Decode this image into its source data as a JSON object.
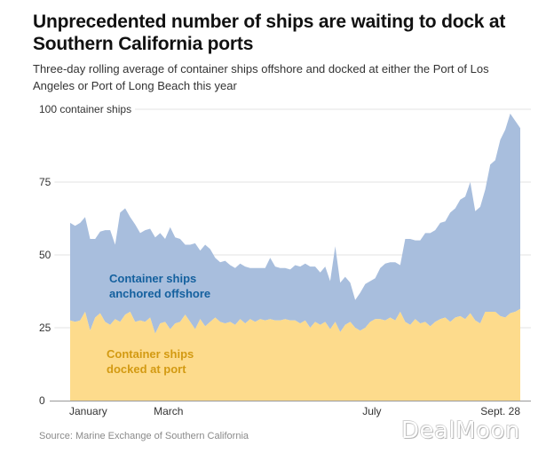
{
  "header": {
    "title": "Unprecedented number of ships are waiting to dock at Southern California ports",
    "subtitle": "Three-day rolling average of container ships offshore and docked at either the Port of Los Angeles or Port of Long Beach this year"
  },
  "footer": {
    "source": "Source: Marine Exchange of Southern California",
    "watermark": "DealMoon"
  },
  "colors": {
    "offshore": "#a8bedd",
    "docked": "#fddb8c",
    "offshore_label": "#14609e",
    "docked_label": "#d39a12",
    "grid": "#e3e3e3",
    "axis": "#999999"
  },
  "chart_data": {
    "type": "area",
    "stacked": true,
    "title": "Unprecedented number of ships are waiting to dock at Southern California ports",
    "subtitle": "Three-day rolling average of container ships offshore and docked at either the Port of Los Angeles or Port of Long Beach this year",
    "xlabel": "",
    "ylabel": "container ships",
    "ylim": [
      0,
      100
    ],
    "y_ticks": [
      {
        "value": 0,
        "label": "0"
      },
      {
        "value": 25,
        "label": "25"
      },
      {
        "value": 50,
        "label": "50"
      },
      {
        "value": 75,
        "label": "75"
      },
      {
        "value": 100,
        "label": "100 container ships"
      }
    ],
    "x_range_days": [
      0,
      270
    ],
    "x_ticks": [
      {
        "day": 0,
        "label": "January",
        "align": "start"
      },
      {
        "day": 59,
        "label": "March",
        "align": "middle"
      },
      {
        "day": 181,
        "label": "July",
        "align": "middle"
      },
      {
        "day": 270,
        "label": "Sept. 28",
        "align": "end"
      }
    ],
    "grid": true,
    "legend": "inline-labels",
    "annotations": [
      {
        "series": "offshore",
        "lines": [
          "Container ships",
          "anchored offshore"
        ]
      },
      {
        "series": "docked",
        "lines": [
          "Container ships",
          "docked at port"
        ]
      }
    ],
    "x_days": [
      0,
      3,
      6,
      9,
      12,
      15,
      18,
      21,
      24,
      27,
      30,
      33,
      36,
      39,
      42,
      45,
      48,
      51,
      54,
      57,
      60,
      63,
      66,
      69,
      72,
      75,
      78,
      81,
      84,
      87,
      90,
      93,
      96,
      99,
      102,
      105,
      108,
      111,
      114,
      117,
      120,
      123,
      126,
      129,
      132,
      135,
      138,
      141,
      144,
      147,
      150,
      153,
      156,
      159,
      162,
      165,
      168,
      171,
      174,
      177,
      180,
      183,
      186,
      189,
      192,
      195,
      198,
      201,
      204,
      207,
      210,
      213,
      216,
      219,
      222,
      225,
      228,
      231,
      234,
      237,
      240,
      243,
      246,
      249,
      252,
      255,
      258,
      261,
      264,
      267,
      270
    ],
    "series": [
      {
        "name": "Container ships docked at port",
        "key": "docked",
        "values": [
          27.5,
          27.0,
          27.5,
          30.5,
          24.0,
          28.5,
          30.0,
          27.0,
          26.0,
          28.0,
          27.0,
          29.5,
          30.5,
          27.0,
          27.5,
          27.0,
          28.5,
          23.0,
          26.5,
          27.0,
          24.5,
          26.5,
          27.0,
          29.5,
          27.0,
          24.5,
          28.0,
          25.5,
          27.0,
          28.5,
          27.0,
          26.5,
          27.0,
          26.0,
          28.0,
          26.5,
          28.0,
          27.0,
          28.0,
          27.5,
          28.0,
          27.5,
          27.5,
          28.0,
          27.5,
          27.5,
          26.5,
          27.5,
          25.0,
          27.0,
          26.0,
          27.0,
          24.5,
          27.0,
          23.5,
          26.0,
          27.0,
          25.0,
          24.0,
          25.0,
          27.0,
          28.0,
          28.0,
          27.5,
          28.5,
          27.5,
          30.5,
          27.0,
          26.0,
          28.0,
          26.5,
          27.0,
          25.5,
          27.0,
          28.0,
          28.5,
          27.0,
          28.5,
          29.0,
          28.0,
          30.0,
          27.5,
          26.5,
          30.5,
          30.5,
          30.5,
          29.0,
          28.5,
          30.0,
          30.5,
          31.5
        ]
      },
      {
        "name": "Container ships anchored offshore",
        "key": "offshore",
        "values": [
          33.5,
          33.0,
          33.5,
          32.5,
          31.5,
          27.0,
          28.0,
          31.5,
          32.5,
          25.5,
          37.5,
          36.5,
          32.5,
          33.5,
          30.0,
          31.5,
          30.5,
          33.0,
          31.0,
          28.5,
          35.0,
          29.5,
          28.5,
          24.0,
          26.5,
          29.5,
          23.5,
          28.0,
          25.0,
          20.5,
          20.5,
          21.5,
          19.5,
          19.5,
          19.0,
          19.5,
          17.5,
          18.5,
          17.5,
          18.0,
          21.0,
          18.5,
          18.0,
          17.5,
          17.5,
          19.0,
          19.5,
          19.5,
          21.0,
          19.0,
          18.0,
          19.0,
          16.5,
          26.0,
          17.0,
          16.5,
          13.5,
          9.5,
          13.0,
          15.0,
          14.0,
          14.0,
          17.5,
          19.5,
          19.0,
          20.0,
          16.0,
          28.5,
          29.5,
          27.0,
          28.5,
          30.5,
          32.0,
          31.5,
          33.0,
          33.0,
          37.5,
          37.5,
          40.0,
          42.0,
          45.0,
          37.5,
          40.0,
          42.0,
          50.5,
          52.0,
          60.5,
          64.5,
          68.5,
          65.5,
          62.0
        ]
      }
    ]
  }
}
